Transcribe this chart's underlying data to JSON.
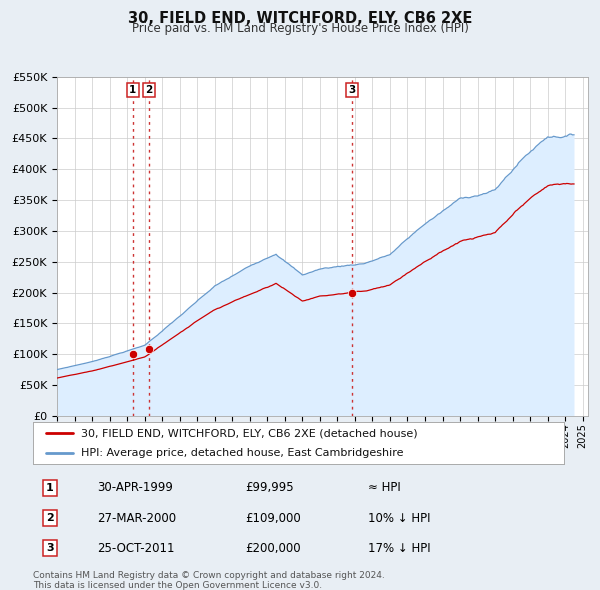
{
  "title": "30, FIELD END, WITCHFORD, ELY, CB6 2XE",
  "subtitle": "Price paid vs. HM Land Registry's House Price Index (HPI)",
  "legend_line1": "30, FIELD END, WITCHFORD, ELY, CB6 2XE (detached house)",
  "legend_line2": "HPI: Average price, detached house, East Cambridgeshire",
  "price_color": "#cc0000",
  "hpi_color": "#6699cc",
  "hpi_fill_color": "#ddeeff",
  "background_color": "#e8eef4",
  "plot_bg_color": "#ffffff",
  "transactions": [
    {
      "label": "1",
      "date_str": "30-APR-1999",
      "date_num": 1999.33,
      "price": 99995,
      "note": "≈ HPI"
    },
    {
      "label": "2",
      "date_str": "27-MAR-2000",
      "date_num": 2000.24,
      "price": 109000,
      "note": "10% ↓ HPI"
    },
    {
      "label": "3",
      "date_str": "25-OCT-2011",
      "date_num": 2011.82,
      "price": 200000,
      "note": "17% ↓ HPI"
    }
  ],
  "vline_color": "#cc3333",
  "xmin": 1995.0,
  "xmax": 2025.3,
  "ymin": 0,
  "ymax": 550000,
  "yticks": [
    0,
    50000,
    100000,
    150000,
    200000,
    250000,
    300000,
    350000,
    400000,
    450000,
    500000,
    550000
  ],
  "ytick_labels": [
    "£0",
    "£50K",
    "£100K",
    "£150K",
    "£200K",
    "£250K",
    "£300K",
    "£350K",
    "£400K",
    "£450K",
    "£500K",
    "£550K"
  ],
  "footer": "Contains HM Land Registry data © Crown copyright and database right 2024.\nThis data is licensed under the Open Government Licence v3.0.",
  "grid_color": "#cccccc"
}
